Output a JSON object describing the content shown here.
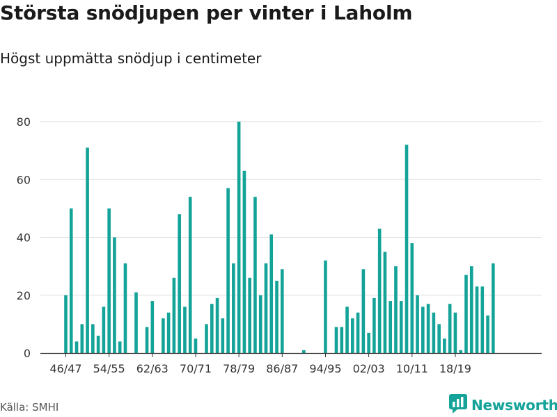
{
  "chart_data": {
    "type": "bar",
    "title": "Största snödjupen per vinter i Laholm",
    "subtitle": "Högst uppmätta snödjup i centimeter",
    "xlabel": "",
    "ylabel": "",
    "ylim": [
      0,
      80
    ],
    "yticks": [
      0,
      20,
      40,
      60,
      80
    ],
    "grid": true,
    "bar_color": "#14a398",
    "categories": [
      "46/47",
      "47/48",
      "48/49",
      "49/50",
      "50/51",
      "51/52",
      "52/53",
      "53/54",
      "54/55",
      "55/56",
      "56/57",
      "57/58",
      "58/59",
      "59/60",
      "60/61",
      "61/62",
      "62/63",
      "63/64",
      "64/65",
      "65/66",
      "66/67",
      "67/68",
      "68/69",
      "69/70",
      "70/71",
      "71/72",
      "72/73",
      "73/74",
      "74/75",
      "75/76",
      "76/77",
      "77/78",
      "78/79",
      "79/80",
      "80/81",
      "81/82",
      "82/83",
      "83/84",
      "84/85",
      "85/86",
      "86/87",
      "87/88",
      "88/89",
      "89/90",
      "90/91",
      "91/92",
      "92/93",
      "93/94",
      "94/95",
      "95/96",
      "96/97",
      "97/98",
      "98/99",
      "99/00",
      "00/01",
      "01/02",
      "02/03",
      "03/04",
      "04/05",
      "05/06",
      "06/07",
      "07/08",
      "08/09",
      "09/10",
      "10/11",
      "11/12",
      "12/13",
      "13/14",
      "14/15",
      "15/16",
      "16/17",
      "17/18",
      "18/19",
      "19/20",
      "20/21",
      "21/22",
      "22/23",
      "23/24",
      "24/25",
      "25/26",
      "26/27"
    ],
    "values": [
      20,
      50,
      4,
      10,
      71,
      10,
      6,
      16,
      50,
      40,
      4,
      31,
      0,
      21,
      0,
      9,
      18,
      0,
      12,
      14,
      26,
      48,
      16,
      54,
      5,
      0,
      10,
      17,
      19,
      12,
      57,
      31,
      80,
      63,
      26,
      54,
      20,
      31,
      41,
      25,
      29,
      0,
      0,
      0,
      1,
      0,
      0,
      0,
      32,
      0,
      9,
      9,
      16,
      12,
      14,
      29,
      7,
      19,
      43,
      35,
      18,
      30,
      18,
      72,
      38,
      20,
      16,
      17,
      14,
      10,
      5,
      17,
      14,
      1,
      27,
      30,
      23,
      23,
      13,
      31,
      null
    ],
    "xtick_labels": [
      "46/47",
      "54/55",
      "62/63",
      "70/71",
      "78/79",
      "86/87",
      "94/95",
      "02/03",
      "10/11",
      "18/19"
    ]
  },
  "footer": {
    "source": "Källa: SMHI",
    "brand": "Newsworthy"
  },
  "colors": {
    "bar": "#14a398",
    "grid": "#dddddd",
    "axis": "#333333",
    "brand": "#14a398"
  }
}
